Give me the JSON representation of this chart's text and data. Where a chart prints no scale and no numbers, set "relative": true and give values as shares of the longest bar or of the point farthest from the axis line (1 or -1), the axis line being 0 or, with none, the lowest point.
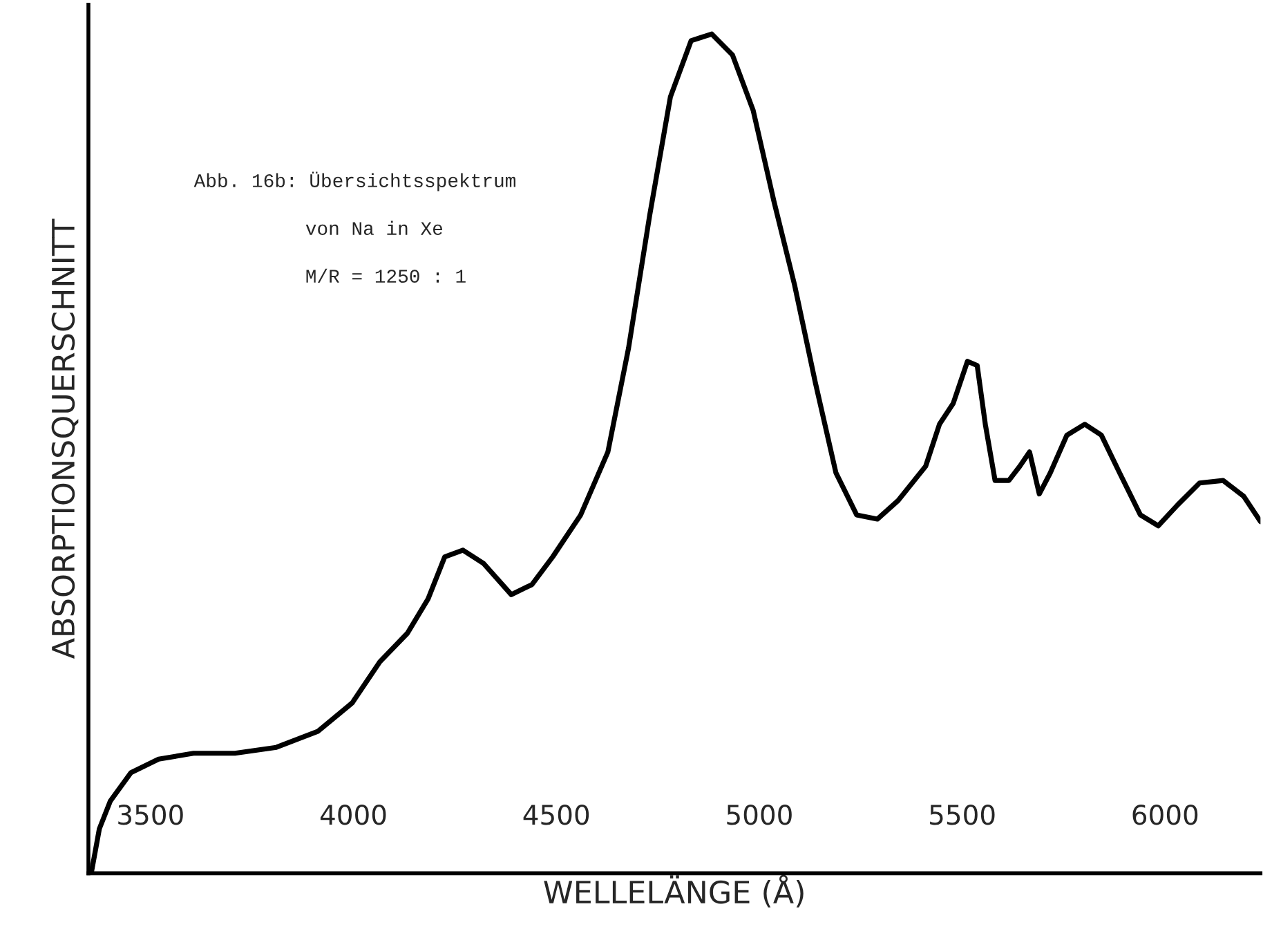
{
  "chart_data": {
    "type": "line",
    "relative": true,
    "xlabel": "WELLELÄNGE (Å)",
    "ylabel": "ABSORPTIONSQUERSCHNITT",
    "annotations": [
      "Abb. 16b: Übersichtsspektrum",
      "von Na in Xe",
      "M/R = 1250 : 1"
    ],
    "xlim": [
      3347,
      6235
    ],
    "xticks": [
      3500,
      4000,
      4500,
      5000,
      5500,
      6000
    ],
    "grid": false,
    "legend": false,
    "marker": "none",
    "line_style": "solid",
    "series": [
      {
        "color": "#000000",
        "x": [
          3354,
          3374,
          3401,
          3452,
          3520,
          3606,
          3708,
          3810,
          3912,
          3997,
          4065,
          4133,
          4184,
          4225,
          4270,
          4321,
          4389,
          4440,
          4491,
          4560,
          4627,
          4678,
          4730,
          4781,
          4832,
          4883,
          4934,
          4985,
          5036,
          5087,
          5138,
          5189,
          5240,
          5291,
          5342,
          5410,
          5444,
          5478,
          5513,
          5537,
          5557,
          5581,
          5615,
          5642,
          5666,
          5690,
          5717,
          5758,
          5802,
          5843,
          5888,
          5939,
          5983,
          6031,
          6085,
          6143,
          6194,
          6235
        ],
        "values": [
          0,
          0.053,
          0.086,
          0.12,
          0.136,
          0.143,
          0.143,
          0.15,
          0.169,
          0.203,
          0.252,
          0.286,
          0.327,
          0.377,
          0.385,
          0.369,
          0.332,
          0.344,
          0.377,
          0.427,
          0.502,
          0.626,
          0.784,
          0.925,
          0.992,
          1.0,
          0.975,
          0.909,
          0.801,
          0.701,
          0.585,
          0.477,
          0.427,
          0.422,
          0.444,
          0.485,
          0.535,
          0.56,
          0.61,
          0.605,
          0.535,
          0.468,
          0.468,
          0.485,
          0.502,
          0.452,
          0.477,
          0.522,
          0.535,
          0.522,
          0.477,
          0.427,
          0.414,
          0.439,
          0.465,
          0.468,
          0.449,
          0.419
        ]
      }
    ]
  }
}
